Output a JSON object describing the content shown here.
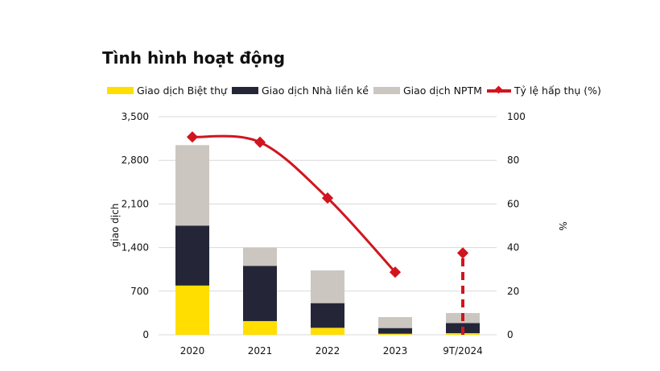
{
  "chart_data": {
    "type": "bar",
    "title": "Tình hình hoạt động",
    "categories": [
      "2020",
      "2021",
      "2022",
      "2023",
      "9T/2024"
    ],
    "ylabel": "giao dịch",
    "y2label": "%",
    "ylim": [
      0,
      3500
    ],
    "yticks": [
      "0",
      "700",
      "1,400",
      "2,100",
      "2,800",
      "3,500"
    ],
    "y2lim": [
      0,
      100
    ],
    "y2ticks": [
      "0",
      "20",
      "40",
      "60",
      "80",
      "100"
    ],
    "grid": true,
    "legend_position": "top",
    "stacked": true,
    "series": [
      {
        "name": "Giao dịch Biệt thự",
        "color": "#FFDE00",
        "values": [
          790,
          220,
          112,
          17,
          26
        ]
      },
      {
        "name": "Giao dịch Nhà liền kề",
        "color": "#242638",
        "values": [
          962,
          886,
          396,
          91,
          163
        ]
      },
      {
        "name": "Giao dịch NPTM",
        "color": "#CCC6C1",
        "values": [
          1292,
          293,
          525,
          176,
          160
        ]
      },
      {
        "name": "Tỷ lệ hấp thụ (%)",
        "type": "line",
        "axis": "right",
        "color": "#D1151F",
        "values": [
          90.7,
          88.3,
          62.7,
          28.7,
          37.5
        ],
        "dashed_last": true
      }
    ]
  }
}
